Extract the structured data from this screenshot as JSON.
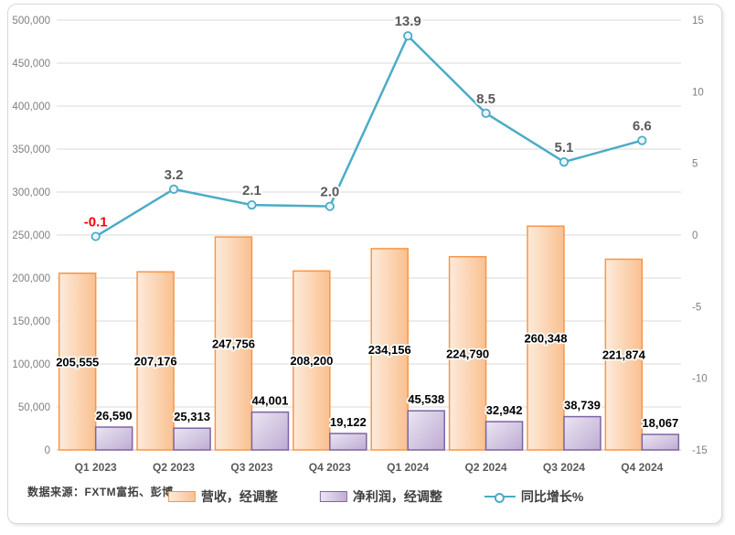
{
  "frame": {
    "background": "#FFFFFF",
    "border_color": "#D8D8D8"
  },
  "source_note": "数据来源：FXTM富拓、彭博",
  "legend": {
    "items": [
      {
        "key": "revenue",
        "label": "营收，经调整",
        "type": "bar",
        "fill_from": "#FDEBDB",
        "fill_to": "#FAC090",
        "border": "#F79646"
      },
      {
        "key": "net-profit",
        "label": "净利润，经调整",
        "type": "bar",
        "fill_from": "#EAE6F2",
        "fill_to": "#C0AED4",
        "border": "#8064A2"
      },
      {
        "key": "growth",
        "label": "同比增长%",
        "type": "line",
        "color": "#4BACC6"
      }
    ]
  },
  "chart_data": {
    "type": "bar+line",
    "categories": [
      "Q1 2023",
      "Q2 2023",
      "Q3 2023",
      "Q4 2023",
      "Q1 2024",
      "Q2 2024",
      "Q3 2024",
      "Q4 2024"
    ],
    "series": [
      {
        "key": "revenue",
        "name": "营收，经调整",
        "chart_type": "bar",
        "axis": "left",
        "values": [
          205555,
          207176,
          247756,
          208200,
          234156,
          224790,
          260348,
          221874
        ],
        "data_labels": [
          "205,555",
          "207,176",
          "247,756",
          "208,200",
          "234,156",
          "224,790",
          "260,348",
          "221,874"
        ],
        "label_position": "inside-center",
        "label_color": "#000000",
        "fill_from": "#FDEBDB",
        "fill_to": "#FAC090",
        "border": "#F79646"
      },
      {
        "key": "net-profit",
        "name": "净利润，经调整",
        "chart_type": "bar",
        "axis": "left",
        "values": [
          26590,
          25313,
          44001,
          19122,
          45538,
          32942,
          38739,
          18067
        ],
        "data_labels": [
          "26,590",
          "25,313",
          "44,001",
          "19,122",
          "45,538",
          "32,942",
          "38,739",
          "18,067"
        ],
        "label_position": "outside-end",
        "label_color": "#000000",
        "fill_from": "#EAE6F2",
        "fill_to": "#C0AED4",
        "border": "#8064A2"
      },
      {
        "key": "growth",
        "name": "同比增长%",
        "chart_type": "line",
        "axis": "right",
        "values": [
          -0.1,
          3.2,
          2.1,
          2.0,
          13.9,
          8.5,
          5.1,
          6.6
        ],
        "data_labels": [
          "-0.1",
          "3.2",
          "2.1",
          "2.0",
          "13.9",
          "8.5",
          "5.1",
          "6.6"
        ],
        "line_color": "#4BACC6",
        "marker_fill": "#EAF6FA",
        "label_color": "#595959",
        "label_color_overrides": {
          "0": "#FF0000"
        }
      }
    ],
    "left_axis": {
      "min": 0,
      "max": 500000,
      "step": 50000,
      "tick_labels": [
        "0",
        "50,000",
        "100,000",
        "150,000",
        "200,000",
        "250,000",
        "300,000",
        "350,000",
        "400,000",
        "450,000",
        "500,000"
      ]
    },
    "right_axis": {
      "min": -15,
      "max": 15,
      "step": 5,
      "tick_labels": [
        "-15",
        "-10",
        "-5",
        "0",
        "5",
        "10",
        "15"
      ]
    },
    "grid": true,
    "gridline_color": "#D9D9D9",
    "zero_line_color": "#C0C0C0",
    "axis_tick_color": "#7F7F7F",
    "x_label_color": "#595959",
    "legend_position": "bottom"
  }
}
